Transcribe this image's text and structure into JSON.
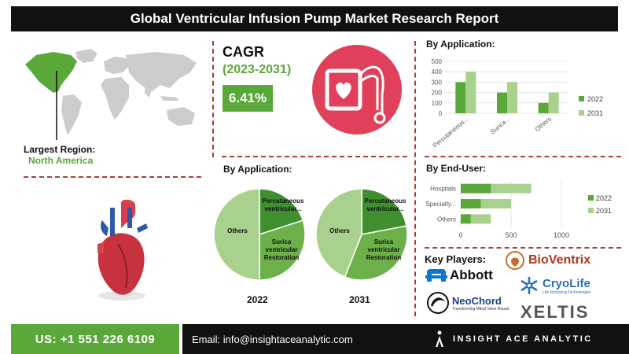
{
  "header": {
    "title": "Global Ventricular Infusion Pump Market Research Report"
  },
  "region": {
    "label": "Largest Region:",
    "value": "North America"
  },
  "cagr": {
    "title": "CAGR",
    "years": "(2023-2031)",
    "value": "6.41%"
  },
  "pie_section": {
    "title": "By Application:",
    "year_2022": "2022",
    "year_2031": "2031"
  },
  "key_players": {
    "title": "Key Players:",
    "names": [
      "Abbott",
      "NeoChord",
      "BioVentrix",
      "CryoLife",
      "XELTIS"
    ],
    "neochord_tagline": "Transforming Mitral Valve Repair",
    "cryolife_tagline": "Life Restoring Technologies"
  },
  "footer": {
    "phone": "US: +1 551 226 6109",
    "email": "Email: info@insightaceanalytic.com",
    "brand": "INSIGHT ACE ANALYTIC"
  },
  "colors": {
    "dark_green": "#5aa83a",
    "light_green": "#a9d18e",
    "pie_dark": "#3f8f2f",
    "pie_mid": "#6cb04a",
    "pie_light": "#a9d18e",
    "accent_red": "#b23a3a",
    "pink": "#e0405a"
  },
  "chart_data": [
    {
      "type": "bar",
      "title": "By Application:",
      "categories": [
        "Percutaneous...",
        "Surica...",
        "Others"
      ],
      "series": [
        {
          "name": "2022",
          "values": [
            300,
            200,
            100
          ]
        },
        {
          "name": "2031",
          "values": [
            400,
            300,
            200
          ]
        }
      ],
      "ylim": [
        0,
        500
      ],
      "yticks": [
        "0",
        "100",
        "200",
        "300",
        "400",
        "500"
      ],
      "legend": "right"
    },
    {
      "type": "bar",
      "title": "By End-User:",
      "orientation": "horizontal",
      "categories": [
        "Hospitals",
        "Specialty...",
        "Others"
      ],
      "series": [
        {
          "name": "2022",
          "values": [
            300,
            200,
            100
          ]
        },
        {
          "name": "2031",
          "values": [
            700,
            500,
            300
          ]
        }
      ],
      "xlim": [
        0,
        1000
      ],
      "xticks": [
        "0",
        "500",
        "1000"
      ],
      "legend": "right"
    },
    {
      "type": "pie",
      "title": "2022",
      "labels": [
        "Percutaneous ventricular...",
        "Surica ventricular Restoration",
        "Others"
      ],
      "values": [
        20,
        30,
        50
      ]
    },
    {
      "type": "pie",
      "title": "2031",
      "labels": [
        "Percutaneous ventricular...",
        "Surica ventricular Restoration",
        "Others"
      ],
      "values": [
        22,
        34,
        44
      ]
    }
  ]
}
